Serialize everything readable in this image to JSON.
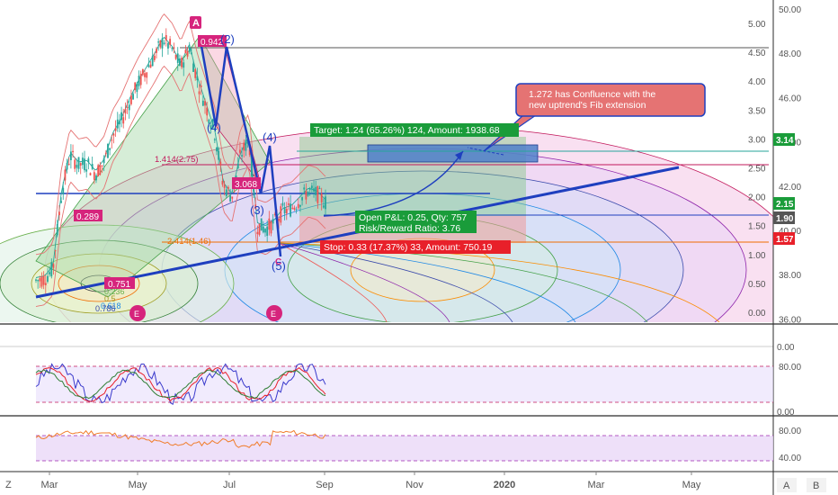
{
  "chart_data": [
    {
      "type": "candlestick",
      "panel": "price",
      "left_axis_ticks": [
        "5.00",
        "4.50",
        "4.00",
        "3.50",
        "3.00",
        "2.50",
        "2.00",
        "1.50",
        "1.00",
        "0.50",
        "0.00"
      ],
      "right_axis_ticks": [
        "50.00",
        "48.00",
        "46.00",
        "44.00",
        "42.00",
        "40.00",
        "38.00",
        "36.00"
      ],
      "price_badges": [
        {
          "label": "3.14",
          "color": "#1a9c3a"
        },
        {
          "label": "2.15",
          "color": "#1a9c3a"
        },
        {
          "label": "1.90",
          "color": "#555555"
        },
        {
          "label": "1.57",
          "color": "#e8202a"
        }
      ],
      "wave_labels": [
        "A",
        "(2)",
        "(4)",
        "(3)",
        "(5)",
        "C",
        "(4)",
        "E",
        "E"
      ],
      "value_labels": [
        "0.942",
        "3.068",
        "0.289",
        "0.751"
      ],
      "fib_labels": [
        "1.414(2.75)",
        "2.414(1.46)",
        "0.236",
        "0.5",
        "0.618",
        "0.786"
      ],
      "target_box": {
        "text": "Target: 1.24 (65.26%) 124, Amount: 1938.68",
        "color": "#1a9c3a"
      },
      "pnl_box": {
        "line1": "Open P&L: 0.25, Qty: 757",
        "line2": "Risk/Reward Ratio: 3.76",
        "color": "#1a9c3a"
      },
      "stop_box": {
        "text": "Stop: 0.33 (17.37%) 33, Amount: 750.19",
        "color": "#e8202a"
      },
      "callout": {
        "text_line1": "1.272 has Confluence with the",
        "text_line2": "new uptrend's Fib extension",
        "color": "#e57373"
      },
      "series": [
        {
          "name": "price",
          "values": [
            0.55,
            0.58,
            0.75,
            2.05,
            2.72,
            2.55,
            2.58,
            2.4,
            2.6,
            3.05,
            3.3,
            3.65,
            3.95,
            4.2,
            4.45,
            4.72,
            4.55,
            4.25,
            4.6,
            4.0,
            3.55,
            3.1,
            2.2,
            2.0,
            2.7,
            3.0,
            1.5,
            1.45,
            1.55,
            1.75,
            1.8,
            1.95,
            2.1,
            2.05,
            1.9
          ]
        }
      ]
    },
    {
      "type": "line",
      "panel": "stochastic",
      "axis_ticks": [
        "80.00",
        "0.00"
      ],
      "levels": [
        80,
        20
      ],
      "series": [
        {
          "name": "%K",
          "color": "#3a3acc"
        },
        {
          "name": "%D",
          "color": "#e8202a"
        }
      ]
    },
    {
      "type": "line",
      "panel": "rsi",
      "axis_ticks": [
        "80.00",
        "40.00"
      ],
      "series": [
        {
          "name": "RSI",
          "color": "#f07c2a"
        }
      ]
    }
  ],
  "time_axis": {
    "labels": [
      "Mar",
      "May",
      "Jul",
      "Sep",
      "Nov",
      "2020",
      "Mar",
      "May"
    ],
    "bold_index": 5
  },
  "corner_buttons": {
    "left": "Z",
    "right_a": "A",
    "right_b": "B"
  }
}
